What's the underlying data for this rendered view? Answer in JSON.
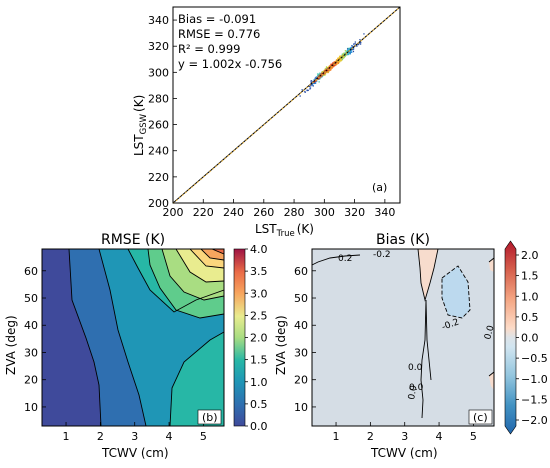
{
  "chart_data": [
    {
      "type": "scatter",
      "panel_label": "(a)",
      "xlabel": "LST",
      "xlabel_sub": "True",
      "xlabel_unit": "(K)",
      "ylabel": "LST",
      "ylabel_sub": "GSW",
      "ylabel_unit": "(K)",
      "xlim": [
        200,
        350
      ],
      "ylim": [
        200,
        350
      ],
      "x_ticks": [
        "200",
        "220",
        "240",
        "260",
        "280",
        "300",
        "320",
        "340"
      ],
      "y_ticks": [
        "200",
        "220",
        "240",
        "260",
        "280",
        "300",
        "320",
        "340"
      ],
      "stats": [
        "Bias =  -0.091",
        "RMSE =   0.776",
        "R² = 0.999",
        "y =    1.002x -0.756"
      ],
      "fit": {
        "slope": 1.002,
        "intercept": -0.756
      },
      "points_range": {
        "x": [
          268,
          338
        ],
        "y": [
          268,
          338
        ]
      },
      "point_colors": [
        "#2b50a8",
        "#2f9be0",
        "#43c6b0",
        "#b6d84b",
        "#f2c431",
        "#f07c2c",
        "#d9342b"
      ]
    },
    {
      "type": "contour",
      "title": "RMSE (K)",
      "panel_label": "(b)",
      "xlabel": "TCWV (cm)",
      "ylabel": "ZVA (deg)",
      "xlim": [
        0.3,
        5.6
      ],
      "ylim": [
        3,
        68
      ],
      "x_ticks": [
        "1",
        "2",
        "3",
        "4",
        "5"
      ],
      "y_ticks": [
        "10",
        "20",
        "30",
        "40",
        "50",
        "60"
      ],
      "colorbar": {
        "ticks": [
          "0.0",
          "0.5",
          "1.0",
          "1.5",
          "2.0",
          "2.5",
          "3.0",
          "3.5",
          "4.0"
        ],
        "min": 0,
        "max": 4,
        "colors": [
          "#3f4a9b",
          "#2f6fb0",
          "#1f96b6",
          "#27b7a6",
          "#5fcc8c",
          "#a9dd82",
          "#e9ec8f",
          "#fbd67d",
          "#f7a55e",
          "#ea6b47",
          "#cc3342",
          "#9e1344"
        ]
      }
    },
    {
      "type": "contour",
      "title": "Bias (K)",
      "panel_label": "(c)",
      "xlabel": "TCWV (cm)",
      "ylabel": "ZVA (deg)",
      "xlim": [
        0.3,
        5.6
      ],
      "ylim": [
        3,
        68
      ],
      "x_ticks": [
        "1",
        "2",
        "3",
        "4",
        "5"
      ],
      "y_ticks": [
        "10",
        "20",
        "30",
        "40",
        "50",
        "60"
      ],
      "contour_labels": [
        "0.0",
        "0.0",
        "0.0",
        "-0.2",
        "0.0",
        "0.2",
        "-0.2"
      ],
      "colorbar": {
        "ticks": [
          "2.0",
          "1.5",
          "1.0",
          "0.5",
          "0.0",
          "−0.5",
          "−1.0",
          "−1.5",
          "−2.0"
        ],
        "min": -2,
        "max": 2,
        "colors": [
          "#b2182b",
          "#d6604d",
          "#f4a582",
          "#fddbc7",
          "#d1dbe4",
          "#d1e5f0",
          "#92c5de",
          "#4393c3",
          "#2166ac"
        ]
      }
    }
  ]
}
